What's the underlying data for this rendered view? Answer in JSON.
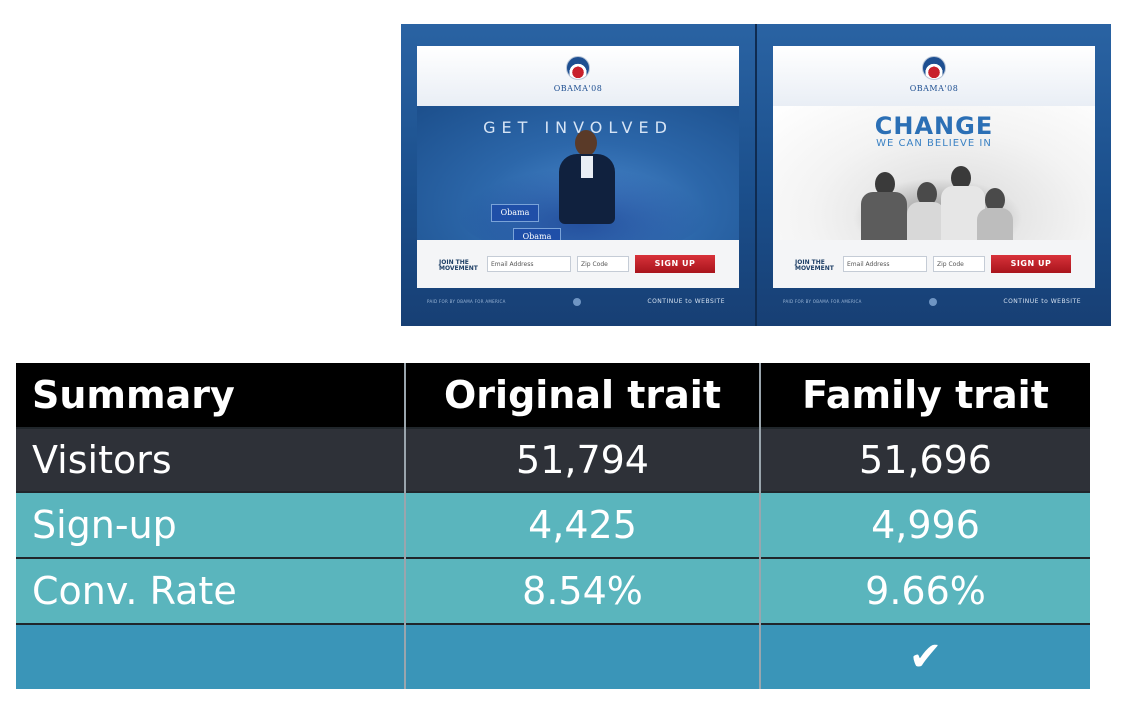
{
  "screenshots": {
    "original": {
      "brand": "OBAMA'08",
      "headline": "GET INVOLVED",
      "signs": [
        "Obama",
        "Obama"
      ],
      "join_label": "JOIN THE MOVEMENT",
      "email_placeholder": "Email Address",
      "zip_placeholder": "Zip Code",
      "signup_label": "SIGN UP",
      "footer_left": "PAID FOR BY OBAMA FOR AMERICA",
      "footer_right": "CONTINUE to WEBSITE"
    },
    "family": {
      "brand": "OBAMA'08",
      "headline": "CHANGE",
      "subheadline": "WE CAN BELIEVE IN",
      "join_label": "JOIN THE MOVEMENT",
      "email_placeholder": "Email Address",
      "zip_placeholder": "Zip Code",
      "signup_label": "SIGN UP",
      "footer_left": "PAID FOR BY OBAMA FOR AMERICA",
      "footer_right": "CONTINUE to WEBSITE"
    }
  },
  "table": {
    "headers": [
      "Summary",
      "Original trait",
      "Family trait"
    ],
    "rows": [
      [
        "Visitors",
        "51,794",
        "51,696"
      ],
      [
        "Sign-up",
        "4,425",
        "4,996"
      ],
      [
        "Conv. Rate",
        "8.54%",
        "9.66%"
      ],
      [
        "",
        "",
        "✔"
      ]
    ]
  },
  "colors": {
    "header_bg": "#000000",
    "visitors_bg": "#2e3138",
    "teal_rows": "#5ab5bd",
    "winner_row": "#3a95b8",
    "signup_red": "#c0232b",
    "obama_blue": "#1e4f91"
  }
}
